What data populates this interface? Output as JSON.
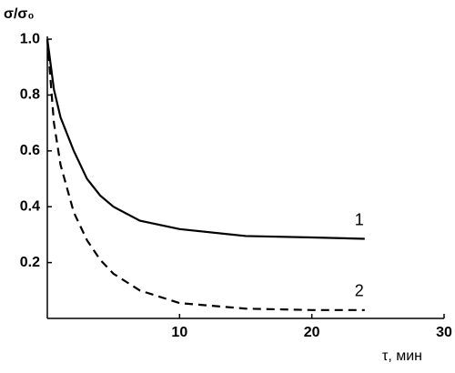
{
  "chart_data": {
    "type": "line",
    "ylabel": "σ/σ₀",
    "xlabel": "τ, мин",
    "x": [
      0,
      0.5,
      1,
      2,
      3,
      4,
      5,
      7,
      10,
      15,
      20,
      24
    ],
    "series": [
      {
        "name": "1",
        "color": "#000000",
        "line_style": "solid",
        "values": [
          1.0,
          0.82,
          0.72,
          0.6,
          0.5,
          0.44,
          0.4,
          0.35,
          0.32,
          0.295,
          0.29,
          0.285
        ]
      },
      {
        "name": "2",
        "color": "#000000",
        "line_style": "dashed",
        "values": [
          1.0,
          0.7,
          0.55,
          0.38,
          0.28,
          0.21,
          0.16,
          0.1,
          0.055,
          0.035,
          0.03,
          0.03
        ]
      }
    ],
    "xlim": [
      0,
      30
    ],
    "xticks": [
      10,
      20,
      30
    ],
    "ylim": [
      0,
      1.01
    ],
    "yticks": [
      0.2,
      0.4,
      0.6,
      0.8,
      {
        "value": 1,
        "label": "1.0"
      }
    ],
    "grid": false
  }
}
